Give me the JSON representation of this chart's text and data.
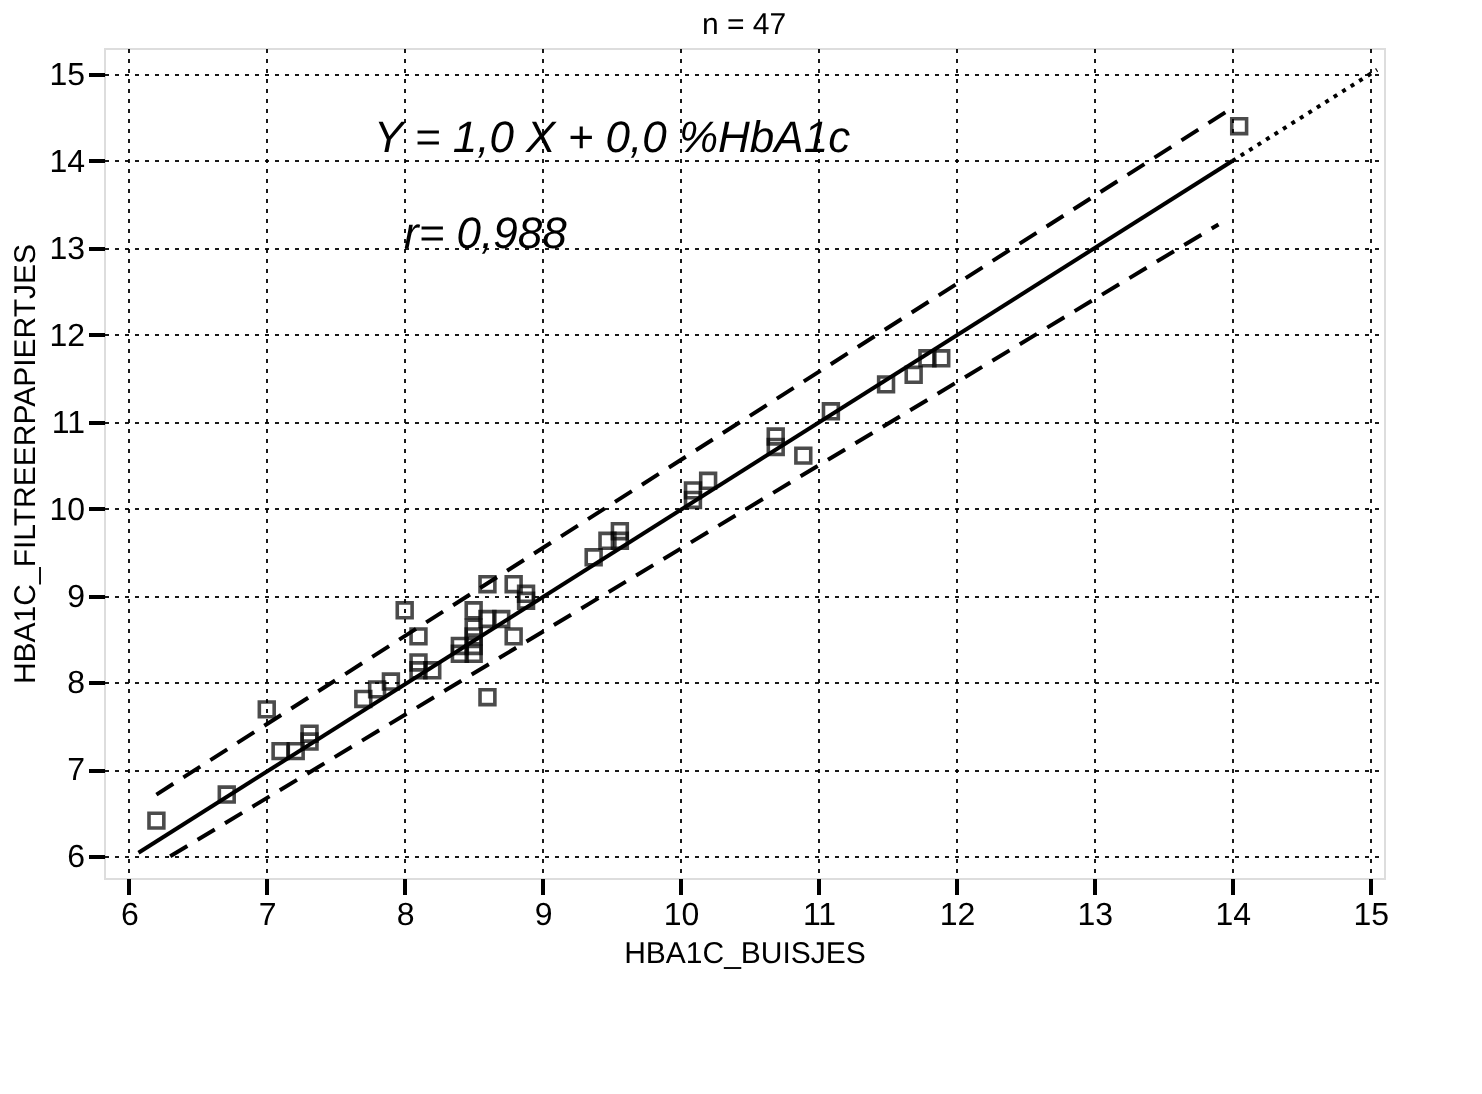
{
  "chart_data": {
    "type": "scatter",
    "title": "n = 47",
    "xlabel": "HBA1C_BUISJES",
    "ylabel": "HBA1C_FILTREERPAPIERTJES",
    "annotations": [
      "Y = 1,0 X + 0,0 %HbA1c",
      "r= 0,988"
    ],
    "xlim": [
      5.82,
      15.1
    ],
    "ylim": [
      5.75,
      15.3
    ],
    "xticks": [
      6,
      7,
      8,
      9,
      10,
      11,
      12,
      13,
      14,
      15
    ],
    "yticks": [
      6,
      7,
      8,
      9,
      10,
      11,
      12,
      13,
      14,
      15
    ],
    "grid": true,
    "series": [
      {
        "color": "#000000",
        "marker": "square",
        "x": [
          6.2,
          6.71,
          7.0,
          7.1,
          7.21,
          7.31,
          7.31,
          7.7,
          7.8,
          7.9,
          8.0,
          8.1,
          8.1,
          8.1,
          8.2,
          8.4,
          8.4,
          8.5,
          8.5,
          8.5,
          8.5,
          8.5,
          8.6,
          8.6,
          8.6,
          8.7,
          8.79,
          8.79,
          8.88,
          8.88,
          9.37,
          9.47,
          9.56,
          9.56,
          10.09,
          10.09,
          10.2,
          10.69,
          10.69,
          10.89,
          11.09,
          11.49,
          11.69,
          11.79,
          11.89,
          14.05
        ],
        "values": [
          6.41,
          6.71,
          7.69,
          7.21,
          7.21,
          7.32,
          7.41,
          7.81,
          7.92,
          8.01,
          8.83,
          8.53,
          8.23,
          8.14,
          8.14,
          8.42,
          8.33,
          8.33,
          8.42,
          8.63,
          8.83,
          8.53,
          9.13,
          8.73,
          7.83,
          8.73,
          9.13,
          8.53,
          9.02,
          8.94,
          9.44,
          9.63,
          9.63,
          9.74,
          10.1,
          10.21,
          10.32,
          10.71,
          10.83,
          10.61,
          11.12,
          11.43,
          11.54,
          11.73,
          11.73,
          14.4
        ]
      },
      {
        "type": "line",
        "color": "#000000",
        "line_style": "solid",
        "marker": "none",
        "x": [
          6.07,
          14.0
        ],
        "values": [
          6.04,
          14.0
        ]
      },
      {
        "type": "line",
        "color": "#000000",
        "line_style": "dashed",
        "marker": "none",
        "x": [
          6.2,
          14.0
        ],
        "values": [
          6.71,
          14.61
        ]
      },
      {
        "type": "line",
        "color": "#000000",
        "line_style": "dashed",
        "marker": "none",
        "x": [
          6.3,
          13.9
        ],
        "values": [
          6.0,
          13.27
        ]
      },
      {
        "type": "line",
        "color": "#000000",
        "line_style": "dotted",
        "marker": "none",
        "x": [
          14.0,
          15.05
        ],
        "values": [
          14.0,
          15.05
        ]
      }
    ]
  }
}
